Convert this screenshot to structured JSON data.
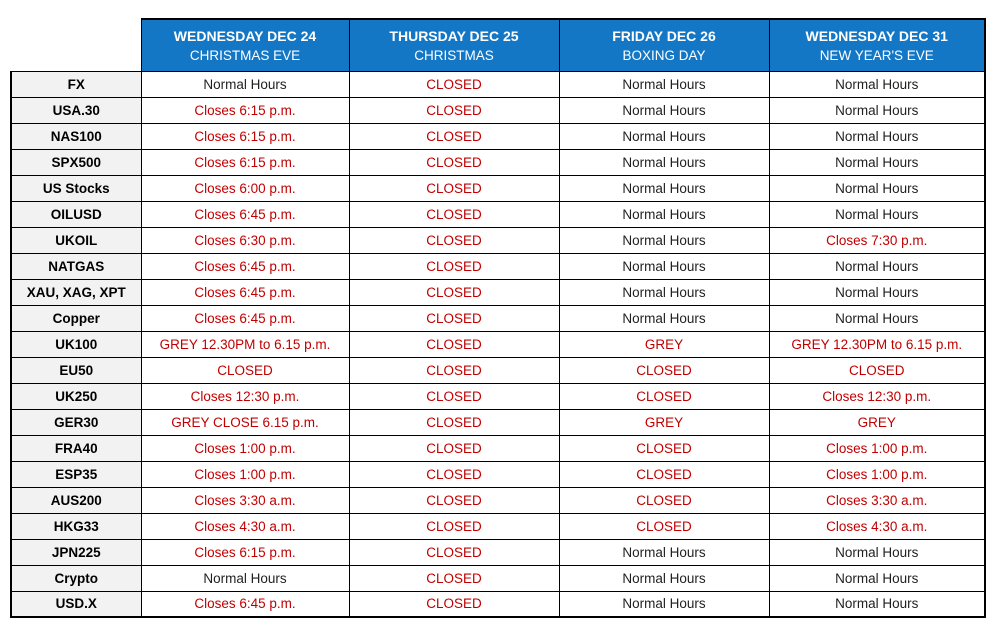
{
  "colors": {
    "header_bg": "#1377c6",
    "header_text": "#ffffff",
    "alert_text": "#c00000",
    "normal_text": "#1f1f1f",
    "label_bg": "#f2f2f2",
    "border": "#000000"
  },
  "table": {
    "columns": [
      {
        "day": "WEDNESDAY DEC 24",
        "holiday": "CHRISTMAS EVE"
      },
      {
        "day": "THURSDAY DEC 25",
        "holiday": "CHRISTMAS"
      },
      {
        "day": "FRIDAY DEC 26",
        "holiday": "BOXING DAY"
      },
      {
        "day": "WEDNESDAY DEC 31",
        "holiday": "NEW YEAR'S EVE"
      }
    ],
    "rows": [
      {
        "label": "FX",
        "cells": [
          {
            "text": "Normal Hours",
            "alert": false
          },
          {
            "text": "CLOSED",
            "alert": true
          },
          {
            "text": "Normal Hours",
            "alert": false
          },
          {
            "text": "Normal Hours",
            "alert": false
          }
        ]
      },
      {
        "label": "USA.30",
        "cells": [
          {
            "text": "Closes 6:15 p.m.",
            "alert": true
          },
          {
            "text": "CLOSED",
            "alert": true
          },
          {
            "text": "Normal Hours",
            "alert": false
          },
          {
            "text": "Normal Hours",
            "alert": false
          }
        ]
      },
      {
        "label": "NAS100",
        "cells": [
          {
            "text": "Closes 6:15 p.m.",
            "alert": true
          },
          {
            "text": "CLOSED",
            "alert": true
          },
          {
            "text": "Normal Hours",
            "alert": false
          },
          {
            "text": "Normal Hours",
            "alert": false
          }
        ]
      },
      {
        "label": "SPX500",
        "cells": [
          {
            "text": "Closes 6:15 p.m.",
            "alert": true
          },
          {
            "text": "CLOSED",
            "alert": true
          },
          {
            "text": "Normal Hours",
            "alert": false
          },
          {
            "text": "Normal Hours",
            "alert": false
          }
        ]
      },
      {
        "label": "US Stocks",
        "cells": [
          {
            "text": "Closes 6:00 p.m.",
            "alert": true
          },
          {
            "text": "CLOSED",
            "alert": true
          },
          {
            "text": "Normal Hours",
            "alert": false
          },
          {
            "text": "Normal Hours",
            "alert": false
          }
        ]
      },
      {
        "label": "OILUSD",
        "cells": [
          {
            "text": "Closes 6:45 p.m.",
            "alert": true
          },
          {
            "text": "CLOSED",
            "alert": true
          },
          {
            "text": "Normal Hours",
            "alert": false
          },
          {
            "text": "Normal Hours",
            "alert": false
          }
        ]
      },
      {
        "label": "UKOIL",
        "cells": [
          {
            "text": "Closes 6:30 p.m.",
            "alert": true
          },
          {
            "text": "CLOSED",
            "alert": true
          },
          {
            "text": "Normal Hours",
            "alert": false
          },
          {
            "text": "Closes 7:30 p.m.",
            "alert": true
          }
        ]
      },
      {
        "label": "NATGAS",
        "cells": [
          {
            "text": "Closes 6:45 p.m.",
            "alert": true
          },
          {
            "text": "CLOSED",
            "alert": true
          },
          {
            "text": "Normal Hours",
            "alert": false
          },
          {
            "text": "Normal Hours",
            "alert": false
          }
        ]
      },
      {
        "label": "XAU, XAG, XPT",
        "cells": [
          {
            "text": "Closes 6:45 p.m.",
            "alert": true
          },
          {
            "text": "CLOSED",
            "alert": true
          },
          {
            "text": "Normal Hours",
            "alert": false
          },
          {
            "text": "Normal Hours",
            "alert": false
          }
        ]
      },
      {
        "label": "Copper",
        "cells": [
          {
            "text": "Closes 6:45 p.m.",
            "alert": true
          },
          {
            "text": "CLOSED",
            "alert": true
          },
          {
            "text": "Normal Hours",
            "alert": false
          },
          {
            "text": "Normal Hours",
            "alert": false
          }
        ]
      },
      {
        "label": "UK100",
        "cells": [
          {
            "text": "GREY 12.30PM to 6.15 p.m.",
            "alert": true
          },
          {
            "text": "CLOSED",
            "alert": true
          },
          {
            "text": "GREY",
            "alert": true
          },
          {
            "text": "GREY 12.30PM to 6.15 p.m.",
            "alert": true
          }
        ]
      },
      {
        "label": "EU50",
        "cells": [
          {
            "text": "CLOSED",
            "alert": true
          },
          {
            "text": "CLOSED",
            "alert": true
          },
          {
            "text": "CLOSED",
            "alert": true
          },
          {
            "text": "CLOSED",
            "alert": true
          }
        ]
      },
      {
        "label": "UK250",
        "cells": [
          {
            "text": "Closes 12:30 p.m.",
            "alert": true
          },
          {
            "text": "CLOSED",
            "alert": true
          },
          {
            "text": "CLOSED",
            "alert": true
          },
          {
            "text": "Closes 12:30 p.m.",
            "alert": true
          }
        ]
      },
      {
        "label": "GER30",
        "cells": [
          {
            "text": "GREY CLOSE 6.15 p.m.",
            "alert": true
          },
          {
            "text": "CLOSED",
            "alert": true
          },
          {
            "text": "GREY",
            "alert": true
          },
          {
            "text": "GREY",
            "alert": true
          }
        ]
      },
      {
        "label": "FRA40",
        "cells": [
          {
            "text": "Closes 1:00 p.m.",
            "alert": true
          },
          {
            "text": "CLOSED",
            "alert": true
          },
          {
            "text": "CLOSED",
            "alert": true
          },
          {
            "text": "Closes 1:00 p.m.",
            "alert": true
          }
        ]
      },
      {
        "label": "ESP35",
        "cells": [
          {
            "text": "Closes 1:00 p.m.",
            "alert": true
          },
          {
            "text": "CLOSED",
            "alert": true
          },
          {
            "text": "CLOSED",
            "alert": true
          },
          {
            "text": "Closes 1:00 p.m.",
            "alert": true
          }
        ]
      },
      {
        "label": "AUS200",
        "cells": [
          {
            "text": "Closes 3:30 a.m.",
            "alert": true
          },
          {
            "text": "CLOSED",
            "alert": true
          },
          {
            "text": "CLOSED",
            "alert": true
          },
          {
            "text": "Closes 3:30 a.m.",
            "alert": true
          }
        ]
      },
      {
        "label": "HKG33",
        "cells": [
          {
            "text": "Closes 4:30 a.m.",
            "alert": true
          },
          {
            "text": "CLOSED",
            "alert": true
          },
          {
            "text": "CLOSED",
            "alert": true
          },
          {
            "text": "Closes 4:30 a.m.",
            "alert": true
          }
        ]
      },
      {
        "label": "JPN225",
        "cells": [
          {
            "text": "Closes 6:15 p.m.",
            "alert": true
          },
          {
            "text": "CLOSED",
            "alert": true
          },
          {
            "text": "Normal Hours",
            "alert": false
          },
          {
            "text": "Normal Hours",
            "alert": false
          }
        ]
      },
      {
        "label": "Crypto",
        "cells": [
          {
            "text": "Normal Hours",
            "alert": false
          },
          {
            "text": "CLOSED",
            "alert": true
          },
          {
            "text": "Normal Hours",
            "alert": false
          },
          {
            "text": "Normal Hours",
            "alert": false
          }
        ]
      },
      {
        "label": "USD.X",
        "cells": [
          {
            "text": "Closes 6:45 p.m.",
            "alert": true
          },
          {
            "text": "CLOSED",
            "alert": true
          },
          {
            "text": "Normal Hours",
            "alert": false
          },
          {
            "text": "Normal Hours",
            "alert": false
          }
        ]
      }
    ]
  }
}
